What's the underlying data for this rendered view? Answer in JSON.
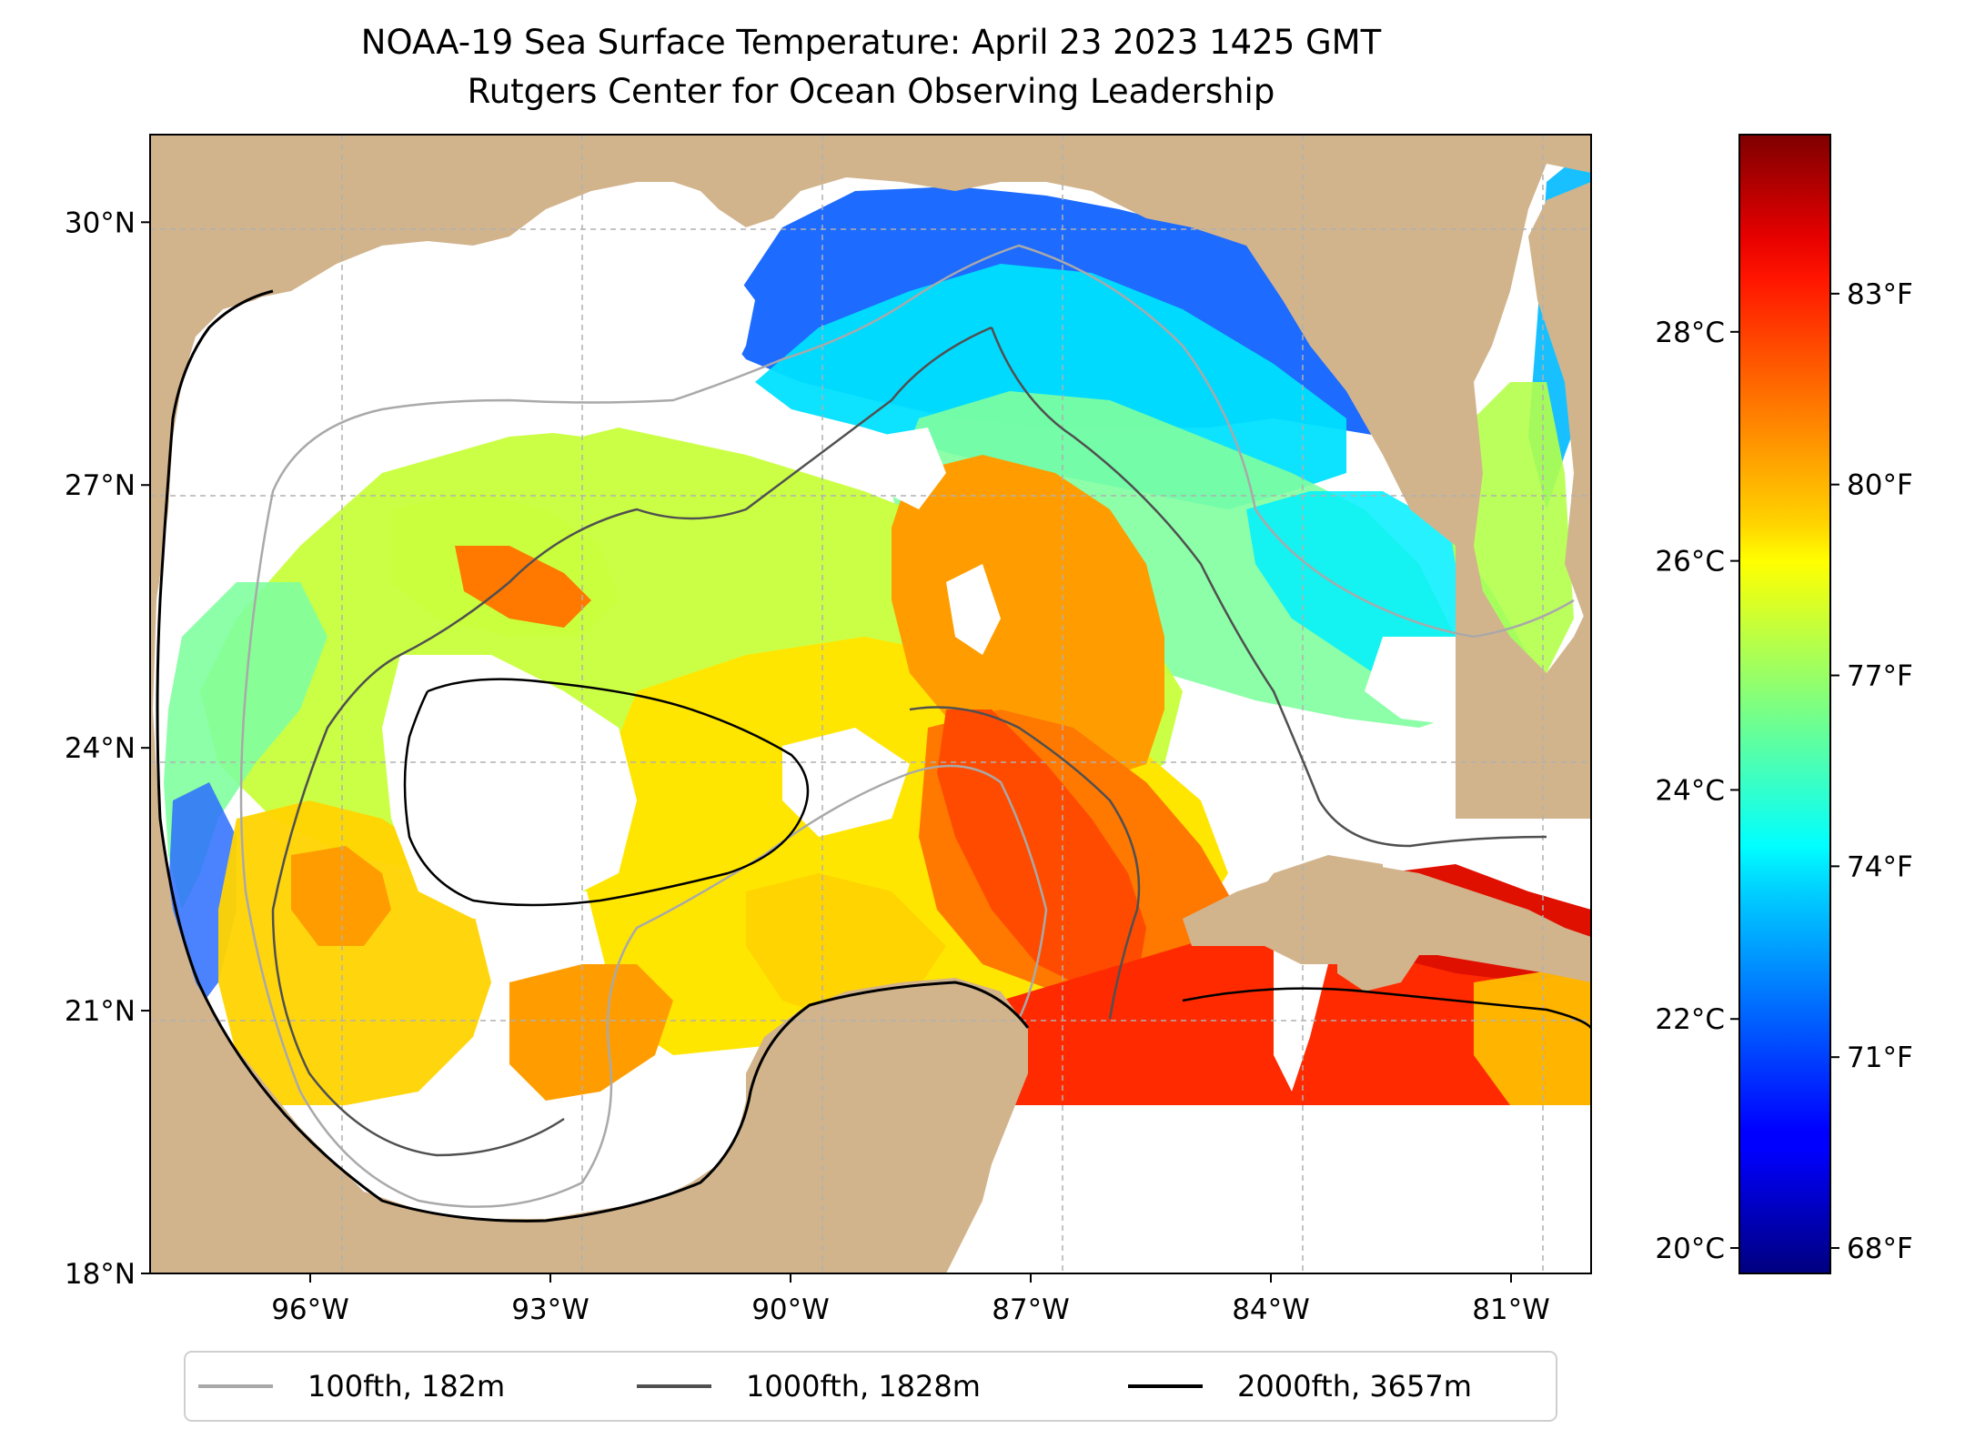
{
  "title": {
    "line1": "NOAA-19 Sea Surface Temperature: April 23 2023 1425 GMT",
    "line2": "Rutgers Center for Ocean Observing Leadership"
  },
  "map": {
    "lon_range": [
      -98,
      -80
    ],
    "lat_range": [
      18,
      31
    ],
    "lat_ticks": [
      {
        "value": 18,
        "label": "18°N"
      },
      {
        "value": 21,
        "label": "21°N"
      },
      {
        "value": 24,
        "label": "24°N"
      },
      {
        "value": 27,
        "label": "27°N"
      },
      {
        "value": 30,
        "label": "30°N"
      }
    ],
    "lon_ticks": [
      {
        "value": -96,
        "label": "96°W"
      },
      {
        "value": -93,
        "label": "93°W"
      },
      {
        "value": -90,
        "label": "90°W"
      },
      {
        "value": -87,
        "label": "87°W"
      },
      {
        "value": -84,
        "label": "84°W"
      },
      {
        "value": -81,
        "label": "81°W"
      }
    ],
    "gridlines": true,
    "colors": {
      "land": "#d2b48c",
      "no_data": "#ffffff",
      "coastline": "#000000",
      "grid": "#b0b0b0"
    }
  },
  "colorbar": {
    "colormap": "jet",
    "range_f": [
      67.6,
      85.5
    ],
    "celsius_ticks": [
      {
        "value": 20,
        "label": "20°C"
      },
      {
        "value": 22,
        "label": "22°C"
      },
      {
        "value": 24,
        "label": "24°C"
      },
      {
        "value": 26,
        "label": "26°C"
      },
      {
        "value": 28,
        "label": "28°C"
      }
    ],
    "fahrenheit_ticks": [
      {
        "value": 68,
        "label": "68°F"
      },
      {
        "value": 71,
        "label": "71°F"
      },
      {
        "value": 74,
        "label": "74°F"
      },
      {
        "value": 77,
        "label": "77°F"
      },
      {
        "value": 80,
        "label": "80°F"
      },
      {
        "value": 83,
        "label": "83°F"
      }
    ]
  },
  "legend": {
    "position": "bottom",
    "items": [
      {
        "label": "100fth, 182m",
        "color": "#a9a9a9"
      },
      {
        "label": "1000fth, 1828m",
        "color": "#505050"
      },
      {
        "label": "2000fth, 3657m",
        "color": "#000000"
      }
    ]
  }
}
